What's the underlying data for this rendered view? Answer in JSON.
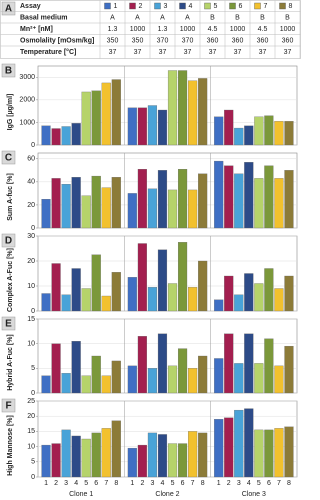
{
  "table": {
    "panel": "A",
    "assay_label": "Assay",
    "rows": [
      [
        "Basal medium",
        "A",
        "A",
        "A",
        "A",
        "B",
        "B",
        "B",
        "B"
      ],
      [
        "Mn²⁺ [nM]",
        "1.3",
        "1000",
        "1.3",
        "1000",
        "4.5",
        "1000",
        "4.5",
        "1000"
      ],
      [
        "Osmolality [mOsm/kg]",
        "350",
        "350",
        "370",
        "370",
        "360",
        "360",
        "360",
        "360"
      ],
      [
        "Temperature [°C]",
        "37",
        "37",
        "37",
        "37",
        "37",
        "37",
        "37",
        "37"
      ]
    ]
  },
  "chart_data": [
    {
      "type": "bar",
      "panel": "B",
      "y_label": "IgG [µg/ml]",
      "categories": [
        "Clone 1",
        "Clone 2",
        "Clone 3"
      ],
      "ylim": [
        0,
        3500
      ],
      "yticks": [
        0,
        1000,
        2000,
        3000
      ],
      "grid": true,
      "series": [
        {
          "name": "1",
          "color": "#3f6fc4",
          "values": [
            850,
            1650,
            1250
          ]
        },
        {
          "name": "2",
          "color": "#a31f4f",
          "values": [
            730,
            1650,
            1550
          ]
        },
        {
          "name": "3",
          "color": "#49a3d8",
          "values": [
            820,
            1750,
            750
          ]
        },
        {
          "name": "4",
          "color": "#2d4b88",
          "values": [
            960,
            1550,
            850
          ]
        },
        {
          "name": "5",
          "color": "#b6d36a",
          "values": [
            2350,
            3300,
            1250
          ]
        },
        {
          "name": "6",
          "color": "#7b983a",
          "values": [
            2400,
            3300,
            1300
          ]
        },
        {
          "name": "7",
          "color": "#f2c12e",
          "values": [
            2750,
            2850,
            1050
          ]
        },
        {
          "name": "8",
          "color": "#8c7b38",
          "values": [
            2900,
            2950,
            1050
          ]
        }
      ]
    },
    {
      "type": "bar",
      "panel": "C",
      "y_label": "Sum A-fuc [%]",
      "categories": [
        "Clone 1",
        "Clone 2",
        "Clone 3"
      ],
      "ylim": [
        0,
        65
      ],
      "yticks": [
        0,
        20,
        40,
        60
      ],
      "grid": true,
      "series": [
        {
          "name": "1",
          "color": "#3f6fc4",
          "values": [
            25,
            30,
            58
          ]
        },
        {
          "name": "2",
          "color": "#a31f4f",
          "values": [
            43,
            51,
            54
          ]
        },
        {
          "name": "3",
          "color": "#49a3d8",
          "values": [
            38,
            34,
            47
          ]
        },
        {
          "name": "4",
          "color": "#2d4b88",
          "values": [
            44,
            50,
            57
          ]
        },
        {
          "name": "5",
          "color": "#b6d36a",
          "values": [
            28,
            33,
            43
          ]
        },
        {
          "name": "6",
          "color": "#7b983a",
          "values": [
            45,
            51,
            54
          ]
        },
        {
          "name": "7",
          "color": "#f2c12e",
          "values": [
            35,
            33,
            43
          ]
        },
        {
          "name": "8",
          "color": "#8c7b38",
          "values": [
            44,
            47,
            50
          ]
        }
      ]
    },
    {
      "type": "bar",
      "panel": "D",
      "y_label": "Complex A-Fuc [%]",
      "categories": [
        "Clone 1",
        "Clone 2",
        "Clone 3"
      ],
      "ylim": [
        0,
        30
      ],
      "yticks": [
        0,
        10,
        20,
        30
      ],
      "grid": true,
      "series": [
        {
          "name": "1",
          "color": "#3f6fc4",
          "values": [
            7,
            13.5,
            4.5
          ]
        },
        {
          "name": "2",
          "color": "#a31f4f",
          "values": [
            19,
            27,
            14
          ]
        },
        {
          "name": "3",
          "color": "#49a3d8",
          "values": [
            6.5,
            9.5,
            6.5
          ]
        },
        {
          "name": "4",
          "color": "#2d4b88",
          "values": [
            17,
            24.5,
            15
          ]
        },
        {
          "name": "5",
          "color": "#b6d36a",
          "values": [
            9,
            11,
            11
          ]
        },
        {
          "name": "6",
          "color": "#7b983a",
          "values": [
            22.5,
            27.5,
            17
          ]
        },
        {
          "name": "7",
          "color": "#f2c12e",
          "values": [
            6,
            9.5,
            9
          ]
        },
        {
          "name": "8",
          "color": "#8c7b38",
          "values": [
            15.5,
            20,
            14
          ]
        }
      ]
    },
    {
      "type": "bar",
      "panel": "E",
      "y_label": "Hybrid A-Fuc [%]",
      "categories": [
        "Clone 1",
        "Clone 2",
        "Clone 3"
      ],
      "ylim": [
        0,
        15
      ],
      "yticks": [
        0,
        5,
        10,
        15
      ],
      "grid": true,
      "series": [
        {
          "name": "1",
          "color": "#3f6fc4",
          "values": [
            3.5,
            5.5,
            7
          ]
        },
        {
          "name": "2",
          "color": "#a31f4f",
          "values": [
            10,
            11.5,
            12
          ]
        },
        {
          "name": "3",
          "color": "#49a3d8",
          "values": [
            4,
            5,
            6
          ]
        },
        {
          "name": "4",
          "color": "#2d4b88",
          "values": [
            10.5,
            12,
            12
          ]
        },
        {
          "name": "5",
          "color": "#b6d36a",
          "values": [
            3.5,
            5.5,
            6
          ]
        },
        {
          "name": "6",
          "color": "#7b983a",
          "values": [
            7.5,
            9,
            11
          ]
        },
        {
          "name": "7",
          "color": "#f2c12e",
          "values": [
            3.5,
            5,
            5.5
          ]
        },
        {
          "name": "8",
          "color": "#8c7b38",
          "values": [
            6.5,
            7.5,
            9.5
          ]
        }
      ]
    },
    {
      "type": "bar",
      "panel": "F",
      "y_label": "High Mannose [%]",
      "categories": [
        "Clone 1",
        "Clone 2",
        "Clone 3"
      ],
      "ylim": [
        0,
        25
      ],
      "yticks": [
        0,
        5,
        10,
        15,
        20,
        25
      ],
      "grid": true,
      "series": [
        {
          "name": "1",
          "color": "#3f6fc4",
          "values": [
            10.5,
            9.5,
            19
          ]
        },
        {
          "name": "2",
          "color": "#a31f4f",
          "values": [
            11,
            10.5,
            19.5
          ]
        },
        {
          "name": "3",
          "color": "#49a3d8",
          "values": [
            15.5,
            14.5,
            22
          ]
        },
        {
          "name": "4",
          "color": "#2d4b88",
          "values": [
            13.5,
            14,
            22.5
          ]
        },
        {
          "name": "5",
          "color": "#b6d36a",
          "values": [
            12.5,
            11,
            15.5
          ]
        },
        {
          "name": "6",
          "color": "#7b983a",
          "values": [
            14.5,
            11,
            15.5
          ]
        },
        {
          "name": "7",
          "color": "#f2c12e",
          "values": [
            16,
            15,
            16
          ]
        },
        {
          "name": "8",
          "color": "#8c7b38",
          "values": [
            18.5,
            14.5,
            16.5
          ]
        }
      ]
    }
  ]
}
